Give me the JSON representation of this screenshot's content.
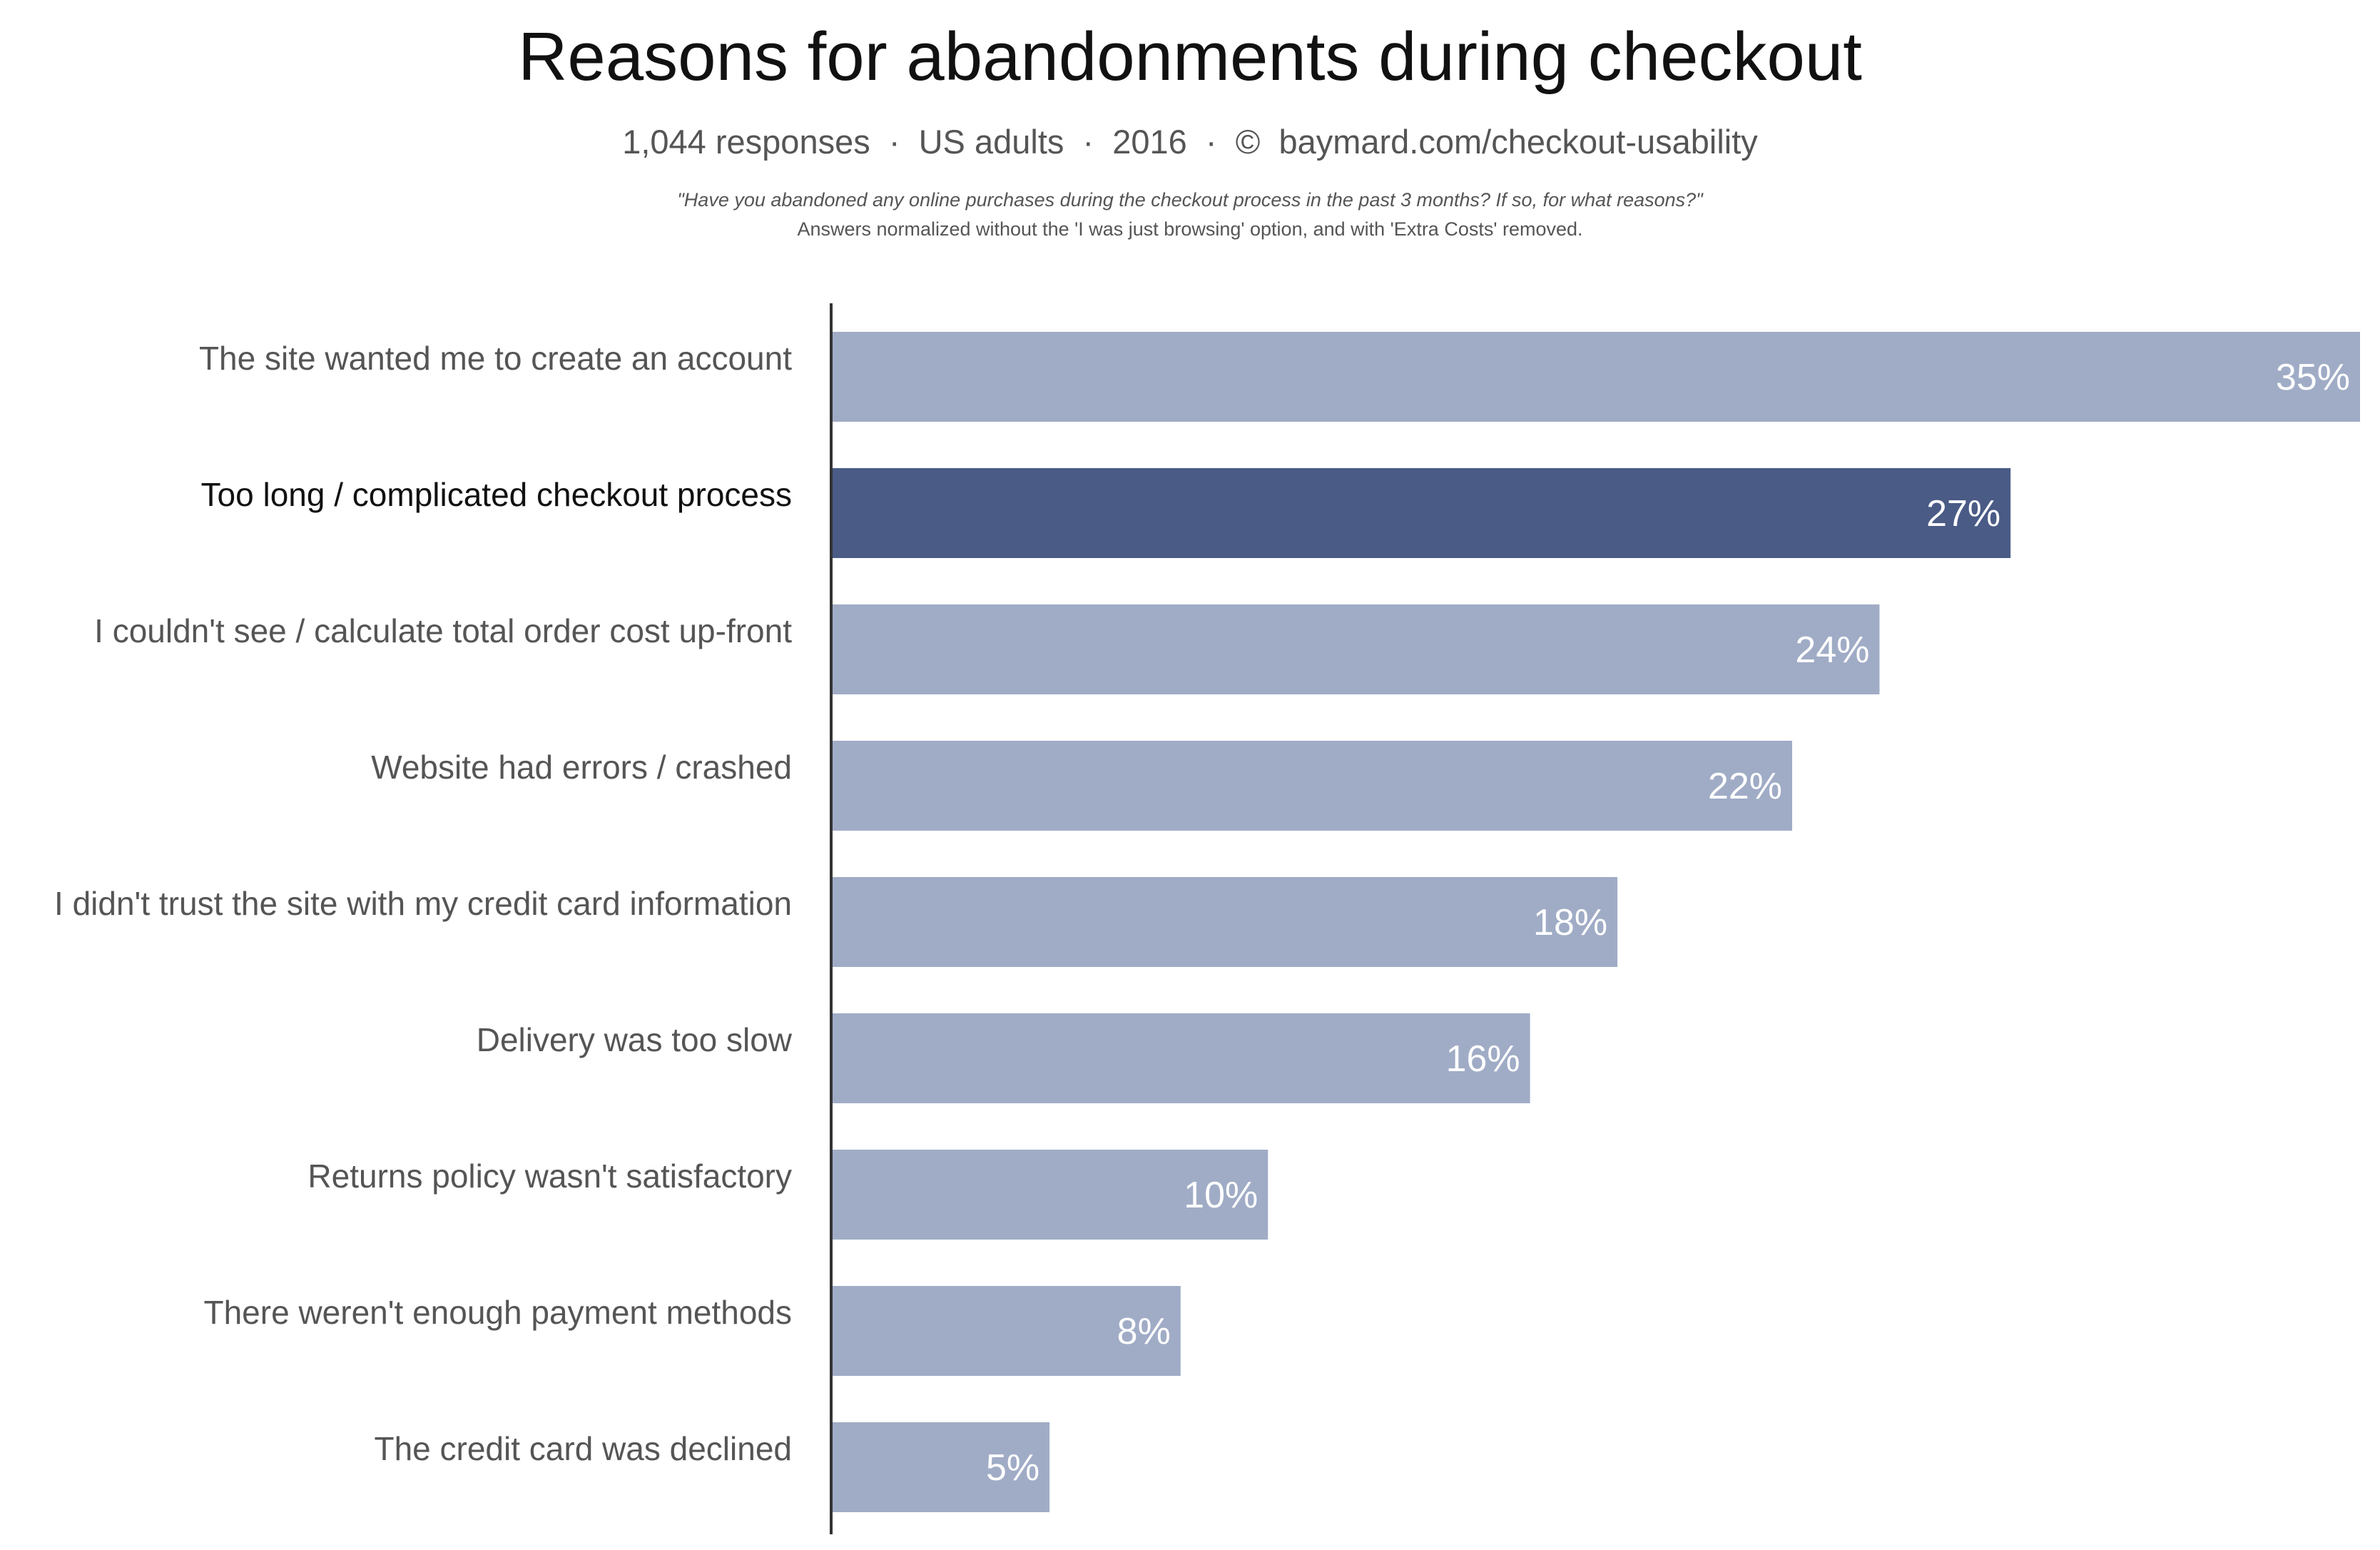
{
  "chart_data": {
    "type": "bar",
    "orientation": "horizontal",
    "title": "Reasons for abandonments during checkout",
    "subtitle": "1,044 responses  ·  US adults  ·  2016  ·  ©  baymard.com/checkout-usability",
    "notes": [
      "\"Have you abandoned any online purchases during the checkout process in the past 3 months? If so, for what reasons?\"",
      "Answers normalized without the 'I was just browsing' option, and with 'Extra Costs' removed."
    ],
    "categories": [
      "The site wanted me to create an account",
      "Too long / complicated checkout process",
      "I couldn't see / calculate total order cost up-front",
      "Website had errors / crashed",
      "I didn't trust the site with my credit card information",
      "Delivery was too slow",
      "Returns policy wasn't satisfactory",
      "There weren't enough payment methods",
      "The credit card was declined"
    ],
    "values": [
      35,
      27,
      24,
      22,
      18,
      16,
      10,
      8,
      5
    ],
    "value_labels": [
      "35%",
      "27%",
      "24%",
      "22%",
      "18%",
      "16%",
      "10%",
      "8%",
      "5%"
    ],
    "highlight_index": 1,
    "xlim": [
      0,
      35
    ],
    "colors": {
      "bar": "#a0acc6",
      "highlight": "#4a5b86",
      "label": "#555555",
      "highlight_label": "#111111",
      "value_label": "#ffffff",
      "axis": "#333333"
    },
    "grid": false,
    "legend": "none"
  }
}
